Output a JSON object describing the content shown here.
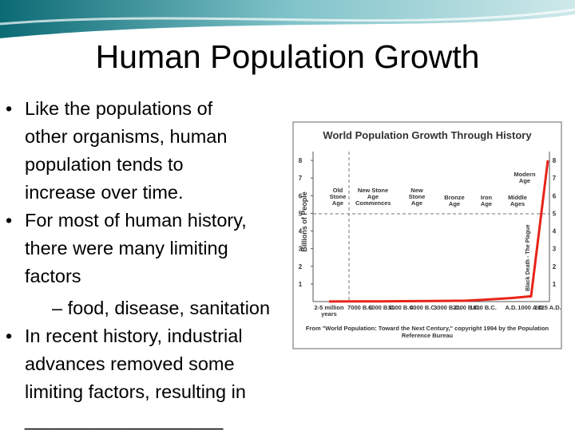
{
  "slide": {
    "title": "Human Population Growth",
    "bullets": [
      {
        "level": 1,
        "lines": [
          "Like the populations of",
          "other organisms, human",
          "population tends to",
          "increase over time."
        ]
      },
      {
        "level": 1,
        "lines": [
          "For most of human history,",
          "there were many limiting",
          "factors"
        ]
      },
      {
        "level": 2,
        "lines": [
          "– food, disease, sanitation"
        ]
      },
      {
        "level": 1,
        "lines": [
          "In recent history, industrial",
          "advances removed some",
          "limiting factors, resulting in",
          "___________________"
        ]
      }
    ]
  },
  "chart_data": {
    "type": "line",
    "title": "World Population Growth Through History",
    "y_label": "Billions of People",
    "categories": [
      "2-5 million years",
      "7000 B.C.",
      "6000 B.C.",
      "5000 B.C.",
      "4000 B.C.",
      "3000 B.C.",
      "2000 B.C.",
      "1000 B.C.",
      "A.D.",
      "1000 A.D.",
      "2025 A.D."
    ],
    "series": [
      {
        "color": "#e8231a",
        "values": [
          0.005,
          0.01,
          0.01,
          0.02,
          0.03,
          0.04,
          0.05,
          0.1,
          0.2,
          0.3,
          8
        ]
      }
    ],
    "ylim": [
      0,
      8.5
    ],
    "yticks": [
      1,
      2,
      3,
      4,
      5,
      6,
      7,
      8
    ],
    "annotations": [
      "Old Stone Age",
      "New Stone Age Commences",
      "New Stone Age",
      "Bronze Age",
      "Iron Age",
      "Middle Ages",
      "Modern Age",
      "Black Death - The Plague"
    ],
    "source": "From \"World Population: Toward the Next Century,\" copyright 1994 by the Population Reference Bureau"
  }
}
